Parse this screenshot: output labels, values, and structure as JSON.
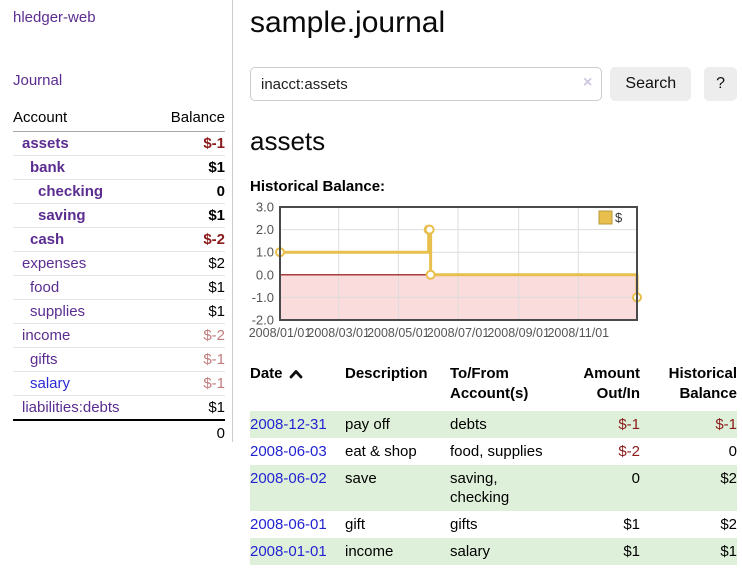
{
  "app": {
    "title": "hledger-web"
  },
  "colors": {
    "link_purple": "#5b2d90",
    "link_blue": "#2a2ad5",
    "negative_strong": "#8b1a1a",
    "negative_faded": "#c07e7e",
    "row_stripe_green": "#dff0da",
    "button_gray": "#ededed"
  },
  "sidebar": {
    "nav": {
      "journal": "Journal"
    },
    "accounts": {
      "headers": {
        "account": "Account",
        "balance": "Balance"
      },
      "rows": [
        {
          "name": "assets",
          "depth": 1,
          "bold": true,
          "balance": "$-1"
        },
        {
          "name": "bank",
          "depth": 2,
          "bold": true,
          "balance": "$1"
        },
        {
          "name": "checking",
          "depth": 3,
          "bold": true,
          "balance": "0"
        },
        {
          "name": "saving",
          "depth": 3,
          "bold": true,
          "balance": "$1"
        },
        {
          "name": "cash",
          "depth": 2,
          "bold": true,
          "balance": "$-2"
        },
        {
          "name": "expenses",
          "depth": 1,
          "bold": false,
          "balance": "$2"
        },
        {
          "name": "food",
          "depth": 2,
          "bold": false,
          "balance": "$1"
        },
        {
          "name": "supplies",
          "depth": 2,
          "bold": false,
          "balance": "$1"
        },
        {
          "name": "income",
          "depth": 1,
          "bold": false,
          "balance": "$-2"
        },
        {
          "name": "gifts",
          "depth": 2,
          "bold": false,
          "balance": "$-1"
        },
        {
          "name": "salary",
          "depth": 2,
          "bold": false,
          "balance": "$-1"
        },
        {
          "name": "liabilities:debts",
          "depth": 1,
          "bold": false,
          "balance": "$1"
        }
      ],
      "total": "0"
    }
  },
  "header": {
    "title": "sample.journal"
  },
  "search": {
    "value": "inacct:assets",
    "clear_icon": "×",
    "button_label": "Search",
    "help_label": "?"
  },
  "account_page": {
    "title": "assets",
    "chart_label": "Historical Balance:"
  },
  "chart_data": {
    "type": "line",
    "step": true,
    "title": "Historical Balance",
    "series": [
      {
        "name": "$",
        "x": [
          "2008-01-01",
          "2008-06-01",
          "2008-06-02",
          "2008-06-03",
          "2008-12-31"
        ],
        "values": [
          1,
          2,
          2,
          0,
          -1
        ]
      }
    ],
    "ylim": [
      -2,
      3
    ],
    "yticks": [
      3,
      2,
      1,
      0,
      -1,
      -2
    ],
    "x_range": [
      "2008-01-01",
      "2008-12-31"
    ],
    "xtick_labels": [
      "2008/01/01",
      "2008/03/01",
      "2008/05/01",
      "2008/07/01",
      "2008/09/01",
      "2008/11/01"
    ],
    "legend": {
      "position": "top-right",
      "entries": [
        "$"
      ]
    },
    "grid": true,
    "colors": {
      "line": "#e8bf4d",
      "marker_fill": "#ffffff",
      "below_zero_fill": "#fbdcdc",
      "zero_line": "#8b0000",
      "grid": "#dddddd",
      "border": "#4a4a4a",
      "tick_text": "#555555",
      "legend_box_border": "#b89b3a"
    }
  },
  "register": {
    "headers": {
      "date": "Date",
      "description": "Description",
      "account": "To/From\nAccount(s)",
      "amount": "Amount\nOut/In",
      "balance": "Historical\nBalance"
    },
    "sort": {
      "column": "date",
      "direction": "ascending"
    },
    "rows": [
      {
        "date": "2008-12-31",
        "description": "pay off",
        "accounts": "debts",
        "amount": "$-1",
        "balance": "$-1"
      },
      {
        "date": "2008-06-03",
        "description": "eat & shop",
        "accounts": "food, supplies",
        "amount": "$-2",
        "balance": "0"
      },
      {
        "date": "2008-06-02",
        "description": "save",
        "accounts": "saving,\nchecking",
        "amount": "0",
        "balance": "$2"
      },
      {
        "date": "2008-06-01",
        "description": "gift",
        "accounts": "gifts",
        "amount": "$1",
        "balance": "$2"
      },
      {
        "date": "2008-01-01",
        "description": "income",
        "accounts": "salary",
        "amount": "$1",
        "balance": "$1"
      }
    ]
  }
}
